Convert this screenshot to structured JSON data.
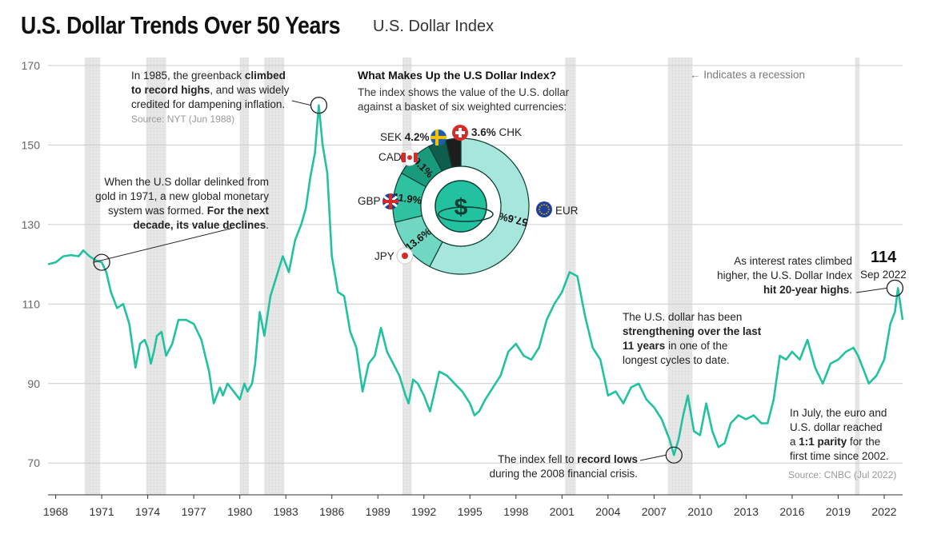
{
  "header": {
    "title": "U.S. Dollar Trends Over 50 Years",
    "subtitle": "U.S. Dollar Index"
  },
  "legend": {
    "recession_text": "← Indicates a recession"
  },
  "annotations": {
    "a1985": {
      "pre": "In 1985, the greenback ",
      "b1": "climbed",
      "b2": "to record highs",
      "post": ", and was widely",
      "line3": "credited for dampening inflation.",
      "source": "Source: NYT (Jun 1988)"
    },
    "a1971": {
      "l1": "When the U.S dollar delinked from",
      "l2": "gold in 1971, a new global monetary",
      "l3pre": "system was formed. ",
      "l3b": "For the next",
      "l4b": "decade, its value declines",
      "l4post": "."
    },
    "a2011": {
      "l1": "The U.S. dollar has been",
      "l2b": "strengthening over the last",
      "l3b": "11 years",
      "l3post": " in one of the",
      "l4": "longest cycles to date."
    },
    "a2008": {
      "l1pre": "The index fell to ",
      "l1b": "record lows",
      "l2": "during the 2008 financial crisis."
    },
    "a2022rates": {
      "l1": "As interest rates climbed",
      "l2": "higher, the U.S. Dollar Index",
      "l3b": "hit 20-year highs",
      "l3post": "."
    },
    "a2022parity": {
      "l1": "In July, the euro and",
      "l2": "U.S. dollar reached",
      "l3pre": "a ",
      "l3b": "1:1 parity",
      "l3post": " for the",
      "l4": "first time since 2002.",
      "source": "Source: CNBC (Jul 2022)"
    },
    "peak": {
      "value": "114",
      "date": "Sep 2022"
    }
  },
  "donut": {
    "title": "What Makes Up the U.S Dollar Index?",
    "subtitle": "The index shows the value of the U.S. dollar against a basket of six weighted currencies:",
    "center_symbol": "$",
    "currencies": [
      {
        "code": "EUR",
        "pct": 57.6,
        "label": "57.6%",
        "color": "#a6e6dc",
        "flag": "eu-flag-icon"
      },
      {
        "code": "JPY",
        "pct": 13.6,
        "label": "13.6%",
        "color": "#6fd7c2",
        "flag": "japan-flag-icon"
      },
      {
        "code": "GBP",
        "pct": 11.9,
        "label": "11.9%",
        "color": "#2fc2a0",
        "flag": "uk-flag-icon"
      },
      {
        "code": "CAD",
        "pct": 9.1,
        "label": "9.1%",
        "color": "#1a9a7c",
        "flag": "canada-flag-icon"
      },
      {
        "code": "SEK",
        "pct": 4.2,
        "label": "4.2%",
        "color": "#0e5e4b",
        "flag": "sweden-flag-icon"
      },
      {
        "code": "CHK",
        "pct": 3.6,
        "label": "3.6%",
        "color": "#1d1d1d",
        "flag": "swiss-flag-icon"
      }
    ]
  },
  "colors": {
    "line": "#22c2a0",
    "grid": "#cccccc",
    "recession": "#e6e6e6",
    "marker": "#222222"
  },
  "chart_data": {
    "type": "line",
    "title": "U.S. Dollar Trends Over 50 Years",
    "subtitle": "U.S. Dollar Index",
    "xlabel": "",
    "ylabel": "",
    "xlim": [
      1967.5,
      2023.2
    ],
    "ylim": [
      62,
      172
    ],
    "y_ticks": [
      70,
      90,
      110,
      130,
      150,
      170
    ],
    "x_ticks": [
      1968,
      1971,
      1974,
      1977,
      1980,
      1983,
      1986,
      1989,
      1992,
      1995,
      1998,
      2001,
      2004,
      2007,
      2010,
      2013,
      2016,
      2019,
      2022
    ],
    "grid": true,
    "recessions": [
      [
        1969.9,
        1970.9
      ],
      [
        1973.9,
        1975.2
      ],
      [
        1980.0,
        1980.6
      ],
      [
        1981.6,
        1982.9
      ],
      [
        1990.6,
        1991.2
      ],
      [
        2001.2,
        2001.9
      ],
      [
        2007.9,
        2009.5
      ],
      [
        2020.1,
        2020.4
      ]
    ],
    "series": [
      {
        "name": "U.S. Dollar Index",
        "x": [
          1967.5,
          1968.0,
          1968.5,
          1969.0,
          1969.5,
          1969.8,
          1970.2,
          1970.6,
          1971.0,
          1971.3,
          1971.6,
          1972.0,
          1972.4,
          1972.8,
          1973.2,
          1973.5,
          1973.8,
          1974.0,
          1974.2,
          1974.4,
          1974.6,
          1974.9,
          1975.2,
          1975.6,
          1976.0,
          1976.5,
          1977.0,
          1977.5,
          1978.0,
          1978.3,
          1978.7,
          1978.9,
          1979.2,
          1979.6,
          1980.0,
          1980.3,
          1980.5,
          1980.8,
          1981.0,
          1981.3,
          1981.6,
          1982.0,
          1982.4,
          1982.8,
          1983.2,
          1983.6,
          1984.0,
          1984.3,
          1984.6,
          1984.9,
          1985.15,
          1985.4,
          1985.7,
          1986.0,
          1986.4,
          1986.8,
          1987.2,
          1987.6,
          1988.0,
          1988.4,
          1988.8,
          1989.2,
          1989.6,
          1990.0,
          1990.4,
          1990.8,
          1991.0,
          1991.3,
          1991.6,
          1992.0,
          1992.4,
          1992.7,
          1993.0,
          1993.5,
          1994.0,
          1994.5,
          1995.0,
          1995.3,
          1995.6,
          1996.0,
          1996.5,
          1997.0,
          1997.5,
          1998.0,
          1998.5,
          1999.0,
          1999.5,
          2000.0,
          2000.5,
          2001.0,
          2001.5,
          2002.0,
          2002.5,
          2003.0,
          2003.5,
          2004.0,
          2004.5,
          2005.0,
          2005.5,
          2006.0,
          2006.5,
          2007.0,
          2007.5,
          2008.0,
          2008.3,
          2008.6,
          2008.9,
          2009.2,
          2009.6,
          2010.0,
          2010.4,
          2010.8,
          2011.2,
          2011.6,
          2012.0,
          2012.5,
          2013.0,
          2013.5,
          2014.0,
          2014.4,
          2014.8,
          2015.2,
          2015.6,
          2016.0,
          2016.5,
          2017.0,
          2017.5,
          2018.0,
          2018.5,
          2019.0,
          2019.5,
          2020.0,
          2020.3,
          2020.7,
          2021.0,
          2021.5,
          2022.0,
          2022.4,
          2022.7,
          2022.9,
          2023.2
        ],
        "values": [
          120.0,
          120.5,
          122.0,
          122.3,
          122.0,
          123.5,
          122.0,
          121.0,
          120.5,
          118.0,
          113.0,
          109.0,
          110.0,
          105.0,
          94.0,
          100.0,
          101.0,
          99.0,
          95.0,
          98.0,
          102.0,
          103.0,
          97.0,
          100.0,
          106.0,
          106.0,
          105.0,
          101.0,
          93.0,
          85.0,
          89.0,
          87.0,
          90.0,
          88.0,
          86.0,
          90.0,
          88.0,
          90.0,
          95.0,
          108.0,
          102.0,
          112.0,
          117.0,
          122.0,
          118.0,
          126.0,
          130.0,
          134.0,
          142.0,
          148.0,
          160.0,
          150.0,
          143.0,
          122.0,
          113.0,
          112.0,
          103.0,
          99.0,
          88.0,
          95.0,
          97.0,
          104.0,
          98.0,
          95.0,
          92.0,
          87.0,
          85.0,
          91.0,
          90.0,
          87.0,
          83.0,
          88.0,
          93.0,
          92.0,
          90.0,
          88.0,
          85.0,
          82.0,
          83.0,
          86.0,
          89.0,
          92.0,
          98.0,
          100.0,
          97.0,
          96.0,
          99.0,
          106.0,
          110.0,
          113.0,
          118.0,
          117.0,
          107.0,
          99.0,
          96.0,
          87.0,
          88.0,
          85.0,
          89.0,
          90.0,
          86.0,
          84.0,
          81.0,
          76.0,
          72.0,
          76.0,
          82.0,
          87.0,
          78.0,
          77.0,
          85.0,
          78.0,
          74.0,
          75.0,
          80.0,
          82.0,
          81.0,
          82.0,
          80.0,
          80.0,
          86.0,
          97.0,
          96.0,
          98.0,
          96.0,
          101.0,
          94.0,
          90.0,
          95.0,
          96.0,
          98.0,
          99.0,
          97.0,
          93.0,
          90.0,
          92.0,
          96.0,
          105.0,
          108.0,
          114.0,
          106.0
        ]
      }
    ]
  }
}
